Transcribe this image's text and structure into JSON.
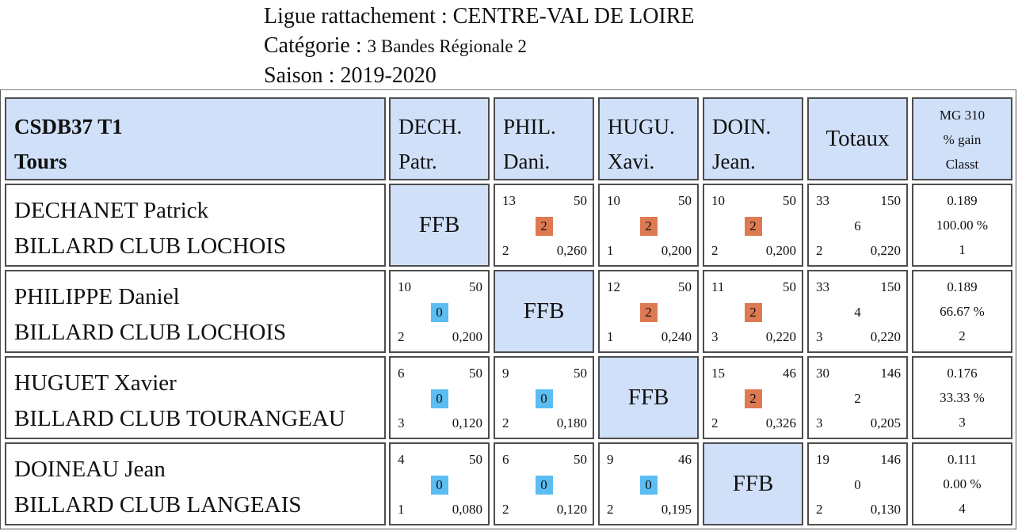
{
  "header": {
    "league_label": "Ligue rattachement : CENTRE-VAL DE LOIRE",
    "category_prefix": "Catégorie :",
    "category_value": "3 Bandes Régionale 2",
    "season_label": "Saison : 2019-2020"
  },
  "table": {
    "corner_line1": "CSDB37 T1",
    "corner_line2": "Tours",
    "columns": [
      {
        "line1": "DECH.",
        "line2": "Patr."
      },
      {
        "line1": "PHIL.",
        "line2": "Dani."
      },
      {
        "line1": "HUGU.",
        "line2": "Xavi."
      },
      {
        "line1": "DOIN.",
        "line2": "Jean."
      }
    ],
    "totals_header": "Totaux",
    "stats_header": {
      "line1": "MG 310",
      "line2": "% gain",
      "line3": "Classt"
    },
    "self_label": "FFB",
    "rows": [
      {
        "name": "DECHANET Patrick",
        "club": "BILLARD CLUB LOCHOIS",
        "results": [
          null,
          {
            "points": "13",
            "distance": "50",
            "match_points": "2",
            "innings": "2",
            "average": "0,260",
            "win": true
          },
          {
            "points": "10",
            "distance": "50",
            "match_points": "2",
            "innings": "1",
            "average": "0,200",
            "win": true
          },
          {
            "points": "10",
            "distance": "50",
            "match_points": "2",
            "innings": "2",
            "average": "0,200",
            "win": true
          }
        ],
        "totals": {
          "points": "33",
          "distance": "150",
          "match_points": "6",
          "innings": "2",
          "average": "0,220"
        },
        "stats": {
          "mg": "0.189",
          "gain": "100.00 %",
          "rank": "1"
        }
      },
      {
        "name": "PHILIPPE Daniel",
        "club": "BILLARD CLUB LOCHOIS",
        "results": [
          {
            "points": "10",
            "distance": "50",
            "match_points": "0",
            "innings": "2",
            "average": "0,200",
            "win": false
          },
          null,
          {
            "points": "12",
            "distance": "50",
            "match_points": "2",
            "innings": "1",
            "average": "0,240",
            "win": true
          },
          {
            "points": "11",
            "distance": "50",
            "match_points": "2",
            "innings": "3",
            "average": "0,220",
            "win": true
          }
        ],
        "totals": {
          "points": "33",
          "distance": "150",
          "match_points": "4",
          "innings": "3",
          "average": "0,220"
        },
        "stats": {
          "mg": "0.189",
          "gain": "66.67 %",
          "rank": "2"
        }
      },
      {
        "name": "HUGUET Xavier",
        "club": "BILLARD CLUB TOURANGEAU",
        "results": [
          {
            "points": "6",
            "distance": "50",
            "match_points": "0",
            "innings": "3",
            "average": "0,120",
            "win": false
          },
          {
            "points": "9",
            "distance": "50",
            "match_points": "0",
            "innings": "2",
            "average": "0,180",
            "win": false
          },
          null,
          {
            "points": "15",
            "distance": "46",
            "match_points": "2",
            "innings": "2",
            "average": "0,326",
            "win": true
          }
        ],
        "totals": {
          "points": "30",
          "distance": "146",
          "match_points": "2",
          "innings": "3",
          "average": "0,205"
        },
        "stats": {
          "mg": "0.176",
          "gain": "33.33 %",
          "rank": "3"
        }
      },
      {
        "name": "DOINEAU Jean",
        "club": "BILLARD CLUB LANGEAIS",
        "results": [
          {
            "points": "4",
            "distance": "50",
            "match_points": "0",
            "innings": "1",
            "average": "0,080",
            "win": false
          },
          {
            "points": "6",
            "distance": "50",
            "match_points": "0",
            "innings": "2",
            "average": "0,120",
            "win": false
          },
          {
            "points": "9",
            "distance": "46",
            "match_points": "0",
            "innings": "2",
            "average": "0,195",
            "win": false
          },
          null
        ],
        "totals": {
          "points": "19",
          "distance": "146",
          "match_points": "0",
          "innings": "2",
          "average": "0,130"
        },
        "stats": {
          "mg": "0.111",
          "gain": "0.00 %",
          "rank": "4"
        }
      }
    ]
  },
  "colors": {
    "header_bg": "#cfe0f8",
    "win_badge": "#de7a51",
    "loss_badge": "#5bbdf2",
    "border": "#4d4d4d"
  }
}
